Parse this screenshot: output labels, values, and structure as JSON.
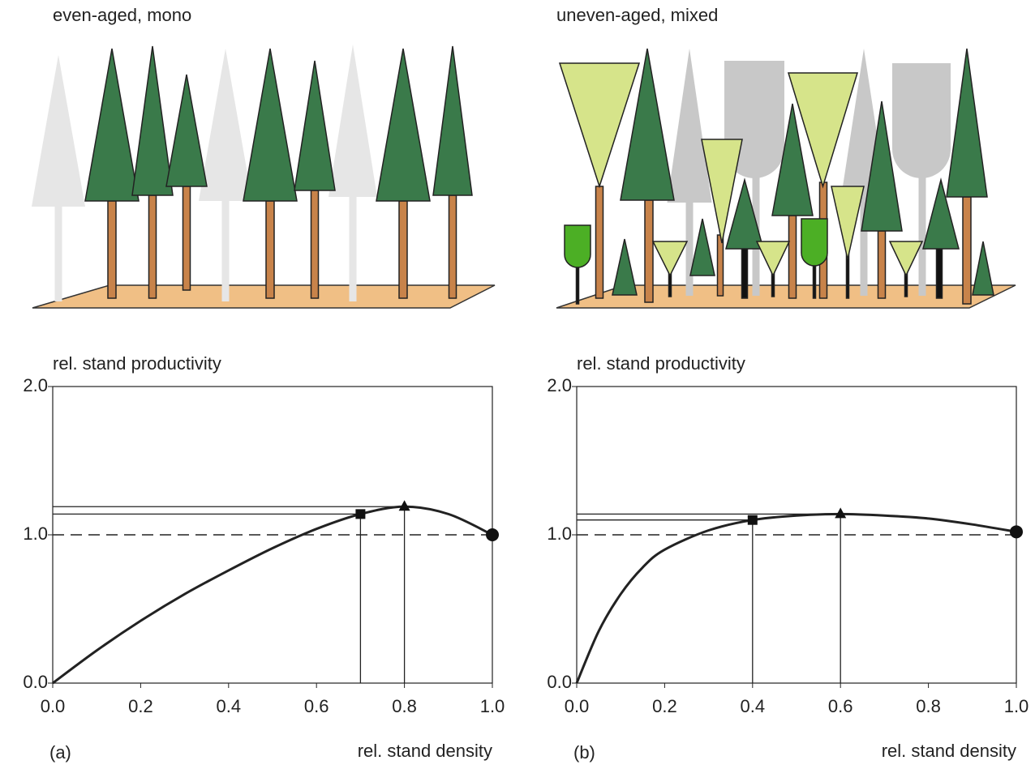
{
  "chart_data": [
    {
      "type": "line",
      "title": "even-aged, mono",
      "panel_label": "(a)",
      "ylabel": "rel. stand productivity",
      "xlabel": "rel. stand density",
      "x": [
        0,
        0.1,
        0.2,
        0.3,
        0.4,
        0.5,
        0.6,
        0.7,
        0.8,
        0.9,
        1.0
      ],
      "values": [
        0,
        0.22,
        0.42,
        0.6,
        0.76,
        0.91,
        1.04,
        1.14,
        1.19,
        1.14,
        1.0
      ],
      "markers": {
        "x": [
          0.7,
          0.8,
          1.0
        ],
        "values": [
          1.14,
          1.19,
          1.0
        ],
        "shapes": [
          "square",
          "triangle",
          "circle"
        ]
      },
      "reference_line": 1.0,
      "color": "#222222",
      "xlim": [
        0,
        1.0
      ],
      "ylim": [
        0,
        2.0
      ],
      "xticks": [
        {
          "value": 0,
          "label": "0.0"
        },
        0.2,
        0.4,
        0.6,
        0.8,
        {
          "value": 1,
          "label": "1.0"
        }
      ],
      "yticks": [
        {
          "value": 0,
          "label": "0.0"
        },
        {
          "value": 1,
          "label": "1.0"
        },
        {
          "value": 2,
          "label": "2.0"
        }
      ]
    },
    {
      "type": "line",
      "title": "uneven-aged, mixed",
      "panel_label": "(b)",
      "ylabel": "rel. stand productivity",
      "xlabel": "rel. stand density",
      "x": [
        0,
        0.05,
        0.1,
        0.15,
        0.2,
        0.3,
        0.4,
        0.5,
        0.6,
        0.7,
        0.8,
        0.9,
        1.0
      ],
      "values": [
        0,
        0.35,
        0.6,
        0.78,
        0.9,
        1.03,
        1.1,
        1.13,
        1.14,
        1.13,
        1.11,
        1.07,
        1.02
      ],
      "markers": {
        "x": [
          0.4,
          0.6,
          1.0
        ],
        "values": [
          1.1,
          1.14,
          1.02
        ],
        "shapes": [
          "square",
          "triangle",
          "circle"
        ]
      },
      "reference_line": 1.0,
      "color": "#222222",
      "xlim": [
        0,
        1.0
      ],
      "ylim": [
        0,
        2.0
      ],
      "xticks": [
        {
          "value": 0,
          "label": "0.0"
        },
        0.2,
        0.4,
        0.6,
        0.8,
        {
          "value": 1,
          "label": "1.0"
        }
      ],
      "yticks": [
        {
          "value": 0,
          "label": "0.0"
        },
        {
          "value": 1,
          "label": "1.0"
        },
        {
          "value": 2,
          "label": "2.0"
        }
      ]
    }
  ]
}
